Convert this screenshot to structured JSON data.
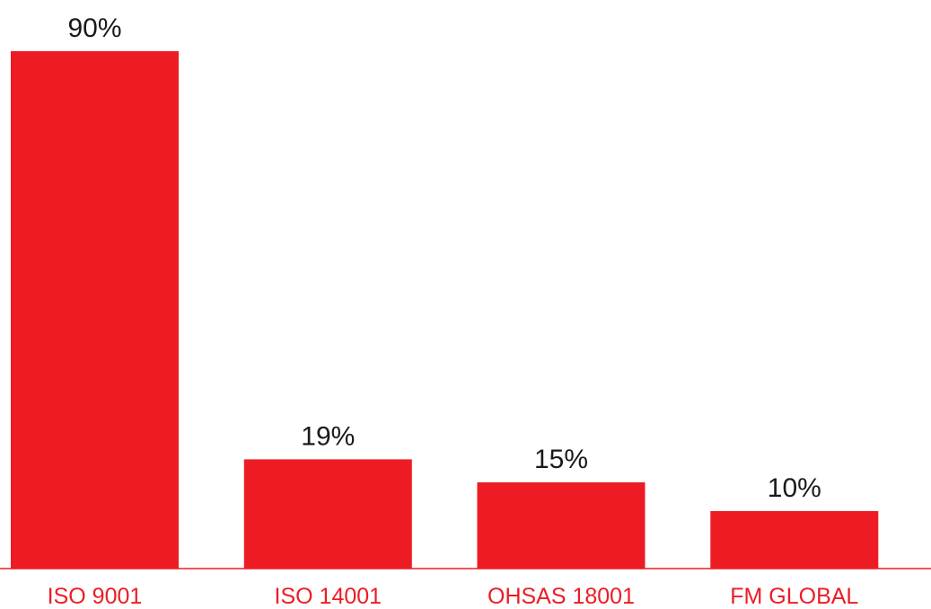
{
  "chart_data": {
    "type": "bar",
    "categories": [
      "ISO 9001",
      "ISO 14001",
      "OHSAS 18001",
      "FM GLOBAL"
    ],
    "values": [
      90,
      19,
      15,
      10
    ],
    "value_labels": [
      "90%",
      "19%",
      "15%",
      "10%"
    ],
    "title": "",
    "xlabel": "",
    "ylabel": "",
    "ylim": [
      0,
      90
    ],
    "grid": false,
    "legend": "none",
    "colors": {
      "bar": "#ed1c24",
      "category_text": "#ed1c24",
      "value_text": "#1a1a1a",
      "axis": "#ed1c24"
    }
  }
}
